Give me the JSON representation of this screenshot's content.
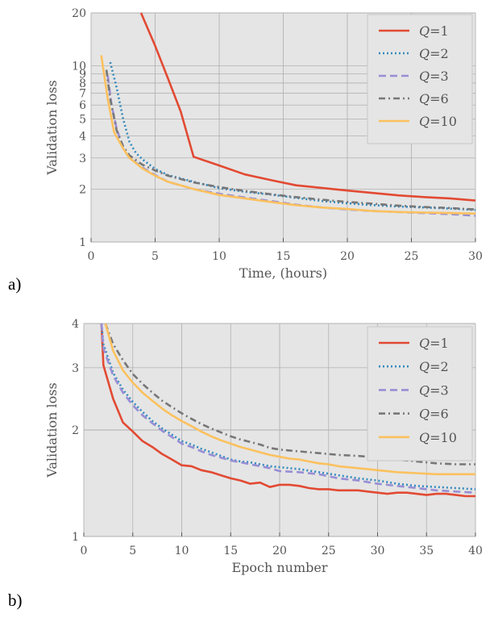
{
  "chart_data": [
    {
      "panel": "a)",
      "type": "line",
      "yscale": "log",
      "xlabel": "Time, (hours)",
      "ylabel": "Validation loss",
      "xlim": [
        0,
        30
      ],
      "ylim": [
        1,
        20
      ],
      "xticks": [
        0,
        5,
        10,
        15,
        20,
        25,
        30
      ],
      "yticks": [
        1,
        2,
        3,
        4,
        5,
        6,
        7,
        8,
        9,
        10,
        20
      ],
      "grid": true,
      "legend_position": "top-right",
      "series": [
        {
          "name": "Q=1",
          "q": "1",
          "color": "#e24a33",
          "dash": "solid",
          "x": [
            3.9,
            5,
            6,
            7,
            8,
            10,
            12,
            14,
            16,
            18,
            20,
            22,
            24,
            26,
            28,
            30
          ],
          "y": [
            20,
            13,
            8.5,
            5.5,
            3.05,
            2.72,
            2.42,
            2.25,
            2.1,
            2.03,
            1.96,
            1.9,
            1.84,
            1.8,
            1.77,
            1.72
          ]
        },
        {
          "name": "Q=2",
          "q": "2",
          "color": "#348abd",
          "dash": "dotted",
          "x": [
            1.5,
            2,
            2.5,
            3,
            3.5,
            4,
            5,
            6,
            8,
            10,
            12,
            14,
            16,
            18,
            20,
            22,
            24,
            26,
            28,
            30
          ],
          "y": [
            10.5,
            7.5,
            5,
            3.7,
            3.2,
            2.95,
            2.6,
            2.4,
            2.2,
            2.02,
            1.93,
            1.86,
            1.78,
            1.71,
            1.66,
            1.62,
            1.59,
            1.57,
            1.55,
            1.52
          ]
        },
        {
          "name": "Q=3",
          "q": "3",
          "color": "#988ed5",
          "dash": "dashed",
          "x": [
            1.3,
            1.6,
            2,
            2.5,
            3,
            4,
            5,
            6,
            8,
            10,
            12,
            14,
            16,
            18,
            20,
            22,
            24,
            26,
            28,
            30
          ],
          "y": [
            8.8,
            6,
            4.4,
            3.4,
            3.0,
            2.65,
            2.4,
            2.2,
            2.0,
            1.88,
            1.79,
            1.71,
            1.63,
            1.57,
            1.53,
            1.5,
            1.48,
            1.46,
            1.44,
            1.41
          ]
        },
        {
          "name": "Q=6",
          "q": "6",
          "color": "#777777",
          "dash": "dashdot",
          "x": [
            1.2,
            1.5,
            2,
            2.5,
            3,
            4,
            5,
            6,
            8,
            10,
            12,
            14,
            16,
            18,
            20,
            22,
            24,
            26,
            28,
            30
          ],
          "y": [
            9.5,
            6.5,
            4.3,
            3.5,
            3.1,
            2.75,
            2.55,
            2.38,
            2.18,
            2.05,
            1.95,
            1.87,
            1.8,
            1.74,
            1.69,
            1.65,
            1.61,
            1.58,
            1.56,
            1.53
          ]
        },
        {
          "name": "Q=10",
          "q": "10",
          "color": "#fbc15e",
          "dash": "solid",
          "x": [
            0.8,
            1.3,
            1.8,
            2.5,
            3,
            4,
            5,
            6,
            8,
            10,
            12,
            14,
            16,
            18,
            20,
            22,
            24,
            26,
            28,
            30
          ],
          "y": [
            11.5,
            6.5,
            4.2,
            3.4,
            3.0,
            2.62,
            2.38,
            2.2,
            2.0,
            1.85,
            1.77,
            1.69,
            1.62,
            1.57,
            1.54,
            1.5,
            1.48,
            1.47,
            1.46,
            1.45
          ]
        }
      ]
    },
    {
      "panel": "b)",
      "type": "line",
      "yscale": "log",
      "xlabel": "Epoch number",
      "ylabel": "Validation loss",
      "xlim": [
        0,
        40
      ],
      "ylim": [
        1,
        4
      ],
      "xticks": [
        0,
        5,
        10,
        15,
        20,
        25,
        30,
        35,
        40
      ],
      "yticks": [
        1,
        2,
        3,
        4
      ],
      "grid": true,
      "legend_position": "top-right",
      "series": [
        {
          "name": "Q=1",
          "q": "1",
          "color": "#e24a33",
          "dash": "solid",
          "x": [
            1.8,
            2,
            3,
            4,
            5,
            6,
            7,
            8,
            9,
            10,
            11,
            12,
            13,
            14,
            15,
            16,
            17,
            18,
            19,
            20,
            21,
            22,
            23,
            24,
            25,
            26,
            27,
            28,
            29,
            30,
            31,
            32,
            33,
            34,
            35,
            36,
            37,
            38,
            39,
            40
          ],
          "y": [
            4.0,
            3.05,
            2.45,
            2.1,
            1.98,
            1.86,
            1.79,
            1.71,
            1.65,
            1.59,
            1.58,
            1.54,
            1.52,
            1.49,
            1.46,
            1.44,
            1.41,
            1.42,
            1.38,
            1.4,
            1.4,
            1.39,
            1.37,
            1.36,
            1.36,
            1.35,
            1.35,
            1.35,
            1.34,
            1.33,
            1.32,
            1.33,
            1.33,
            1.32,
            1.31,
            1.32,
            1.32,
            1.31,
            1.3,
            1.3
          ]
        },
        {
          "name": "Q=2",
          "q": "2",
          "color": "#348abd",
          "dash": "dotted",
          "x": [
            1.8,
            2,
            3,
            4,
            5,
            6,
            7,
            8,
            9,
            10,
            11,
            12,
            13,
            14,
            15,
            16,
            17,
            18,
            19,
            20,
            22,
            24,
            26,
            28,
            30,
            32,
            34,
            36,
            38,
            40
          ],
          "y": [
            4.0,
            3.5,
            2.9,
            2.6,
            2.4,
            2.25,
            2.12,
            2.02,
            1.94,
            1.86,
            1.82,
            1.77,
            1.73,
            1.69,
            1.65,
            1.63,
            1.62,
            1.6,
            1.58,
            1.57,
            1.55,
            1.52,
            1.49,
            1.46,
            1.44,
            1.41,
            1.39,
            1.38,
            1.37,
            1.36
          ]
        },
        {
          "name": "Q=3",
          "q": "3",
          "color": "#988ed5",
          "dash": "dashed",
          "x": [
            1.8,
            2,
            3,
            4,
            5,
            6,
            7,
            8,
            9,
            10,
            11,
            12,
            13,
            14,
            15,
            16,
            17,
            18,
            19,
            20,
            22,
            24,
            26,
            28,
            30,
            32,
            34,
            36,
            38,
            40
          ],
          "y": [
            4.0,
            3.4,
            2.85,
            2.55,
            2.35,
            2.2,
            2.09,
            1.99,
            1.91,
            1.83,
            1.79,
            1.74,
            1.7,
            1.67,
            1.64,
            1.62,
            1.6,
            1.58,
            1.56,
            1.53,
            1.52,
            1.5,
            1.46,
            1.44,
            1.41,
            1.39,
            1.37,
            1.35,
            1.34,
            1.33
          ]
        },
        {
          "name": "Q=6",
          "q": "6",
          "color": "#777777",
          "dash": "dashdot",
          "x": [
            2.2,
            3,
            4,
            5,
            6,
            7,
            8,
            9,
            10,
            11,
            12,
            13,
            14,
            15,
            16,
            17,
            18,
            19,
            20,
            21,
            22,
            23,
            24,
            25,
            26,
            28,
            30,
            32,
            34,
            36,
            38,
            40
          ],
          "y": [
            4.0,
            3.5,
            3.15,
            2.88,
            2.7,
            2.55,
            2.42,
            2.32,
            2.23,
            2.15,
            2.08,
            2.02,
            1.97,
            1.92,
            1.88,
            1.85,
            1.82,
            1.78,
            1.76,
            1.75,
            1.74,
            1.73,
            1.72,
            1.71,
            1.7,
            1.69,
            1.67,
            1.65,
            1.63,
            1.61,
            1.6,
            1.6
          ]
        },
        {
          "name": "Q=10",
          "q": "10",
          "color": "#fbc15e",
          "dash": "solid",
          "x": [
            2.2,
            3,
            4,
            5,
            6,
            7,
            8,
            9,
            10,
            11,
            12,
            13,
            14,
            15,
            16,
            17,
            18,
            19,
            20,
            21,
            22,
            23,
            24,
            25,
            26,
            28,
            30,
            32,
            34,
            36,
            38,
            40
          ],
          "y": [
            4.0,
            3.35,
            2.95,
            2.72,
            2.55,
            2.42,
            2.3,
            2.2,
            2.12,
            2.05,
            1.98,
            1.92,
            1.87,
            1.83,
            1.79,
            1.76,
            1.73,
            1.7,
            1.68,
            1.66,
            1.65,
            1.63,
            1.61,
            1.6,
            1.58,
            1.56,
            1.54,
            1.52,
            1.51,
            1.5,
            1.5,
            1.5
          ]
        }
      ]
    }
  ]
}
